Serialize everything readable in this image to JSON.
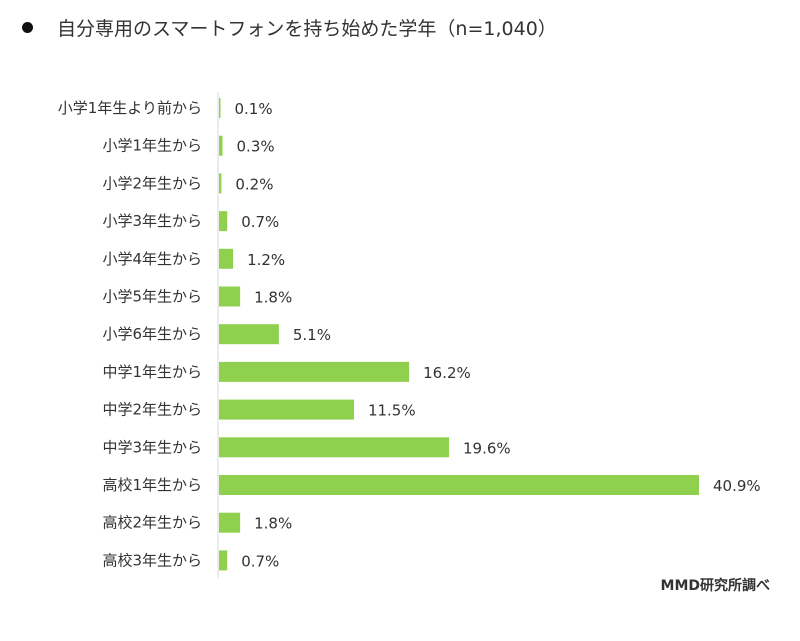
{
  "chart_data": {
    "type": "bar",
    "orientation": "horizontal",
    "title": "自分専用のスマートフォンを持ち始めた学年（n=1,040）",
    "source": "MMD研究所調べ",
    "categories": [
      "小学1年生より前から",
      "小学1年生から",
      "小学2年生から",
      "小学3年生から",
      "小学4年生から",
      "小学5年生から",
      "小学6年生から",
      "中学1年生から",
      "中学2年生から",
      "中学3年生から",
      "高校1年生から",
      "高校2年生から",
      "高校3年生から"
    ],
    "values": [
      0.1,
      0.3,
      0.2,
      0.7,
      1.2,
      1.8,
      5.1,
      16.2,
      11.5,
      19.6,
      40.9,
      1.8,
      0.7
    ],
    "value_labels": [
      "0.1%",
      "0.3%",
      "0.2%",
      "0.7%",
      "1.2%",
      "1.8%",
      "5.1%",
      "16.2%",
      "11.5%",
      "19.6%",
      "40.9%",
      "1.8%",
      "0.7%"
    ],
    "unit": "%",
    "xlim": [
      0,
      40.9
    ],
    "bar_color": "#8fd14f",
    "grid": false
  }
}
